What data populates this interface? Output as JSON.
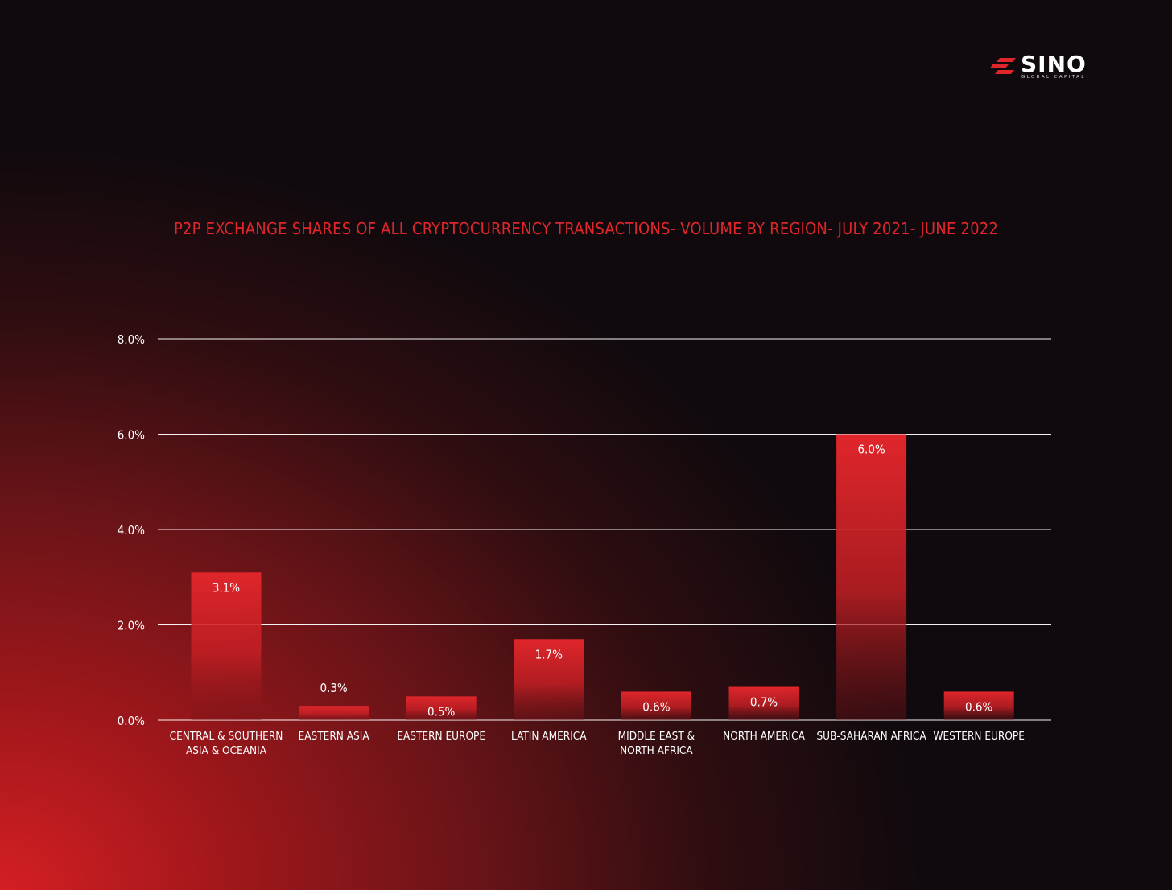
{
  "brand": {
    "name": "SINO",
    "tagline": "GLOBAL CAPITAL",
    "color": "#e0262b"
  },
  "chart_data": {
    "type": "bar",
    "title": "P2P EXCHANGE SHARES OF ALL CRYPTOCURRENCY TRANSACTIONS- VOLUME BY REGION- JULY 2021- JUNE 2022",
    "categories": [
      [
        "CENTRAL & SOUTHERN",
        "ASIA & OCEANIA"
      ],
      [
        "EASTERN ASIA"
      ],
      [
        "EASTERN EUROPE"
      ],
      [
        "LATIN AMERICA"
      ],
      [
        "MIDDLE EAST &",
        "NORTH AFRICA"
      ],
      [
        "NORTH AMERICA"
      ],
      [
        "SUB-SAHARAN AFRICA"
      ],
      [
        "WESTERN EUROPE"
      ]
    ],
    "values": [
      3.1,
      0.3,
      0.5,
      1.7,
      0.6,
      0.7,
      6.0,
      0.6
    ],
    "value_labels": [
      "3.1%",
      "0.3%",
      "0.5%",
      "1.7%",
      "0.6%",
      "0.7%",
      "6.0%",
      "0.6%"
    ],
    "yticks": [
      0,
      2,
      4,
      6,
      8
    ],
    "ytick_labels": [
      "0.0%",
      "2.0%",
      "4.0%",
      "6.0%",
      "8.0%"
    ],
    "ylim": [
      0,
      8
    ],
    "grid": true,
    "bar_color": "#e0262b",
    "text_color": "#ffffff"
  }
}
